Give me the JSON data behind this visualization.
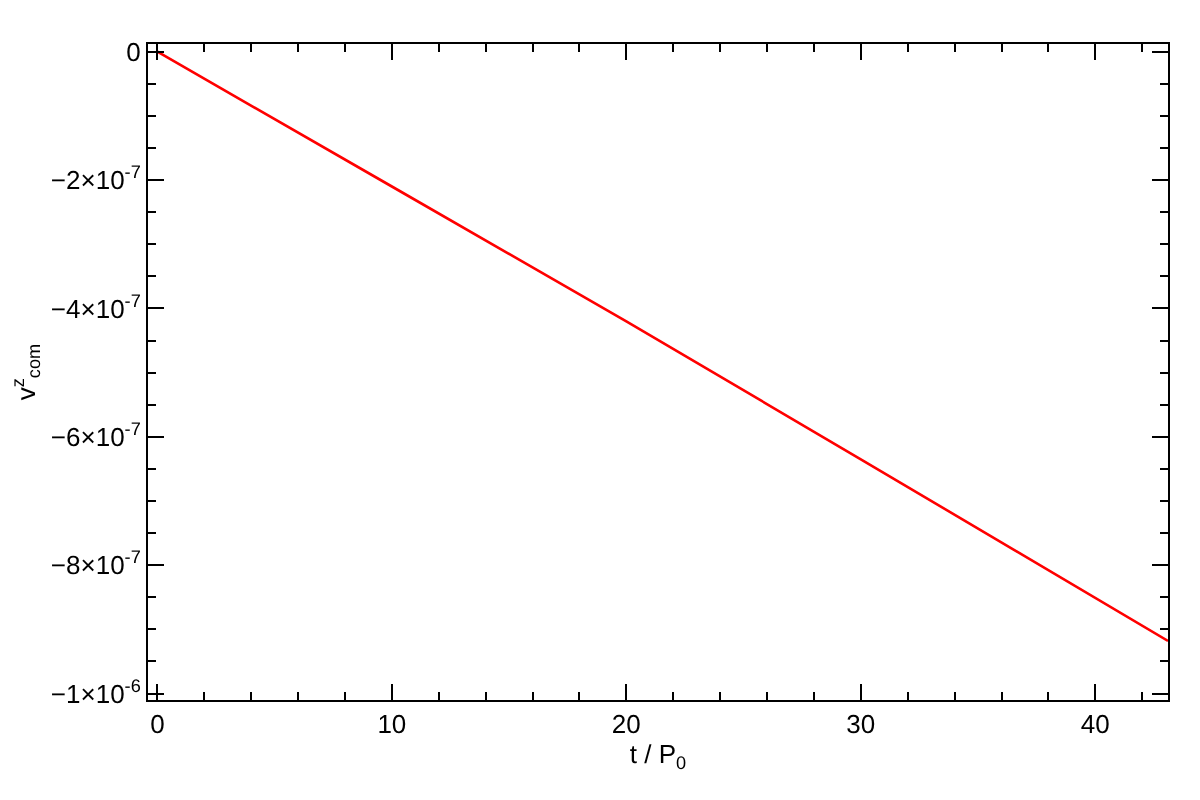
{
  "chart_data": {
    "type": "line",
    "xlabel": "t / P$_{0}$",
    "ylabel": "v$^{z}$$_{com}$",
    "x": [
      0,
      10,
      20,
      30,
      43.1
    ],
    "series": [
      {
        "color": "#ff0000",
        "values": [
          0,
          -2.1e-07,
          -4.2e-07,
          -6.35e-07,
          -9.18e-07
        ]
      }
    ],
    "xlim": [
      -0.4,
      43.1
    ],
    "xticks": [
      0,
      10,
      20,
      30,
      40
    ],
    "ylim": [
      -1.01e-06,
      1.2e-08
    ],
    "yticks": [
      {
        "value": 0,
        "label": "0"
      },
      {
        "value": -2e-07,
        "label": "−2×10$^{-7}$"
      },
      {
        "value": -4e-07,
        "label": "−4×10$^{-7}$"
      },
      {
        "value": -6e-07,
        "label": "−6×10$^{-7}$"
      },
      {
        "value": -8e-07,
        "label": "−8×10$^{-7}$"
      },
      {
        "value": -1e-06,
        "label": "−1×10$^{-6}$"
      }
    ],
    "legend": false,
    "marker": "none",
    "line_style": "solid"
  }
}
